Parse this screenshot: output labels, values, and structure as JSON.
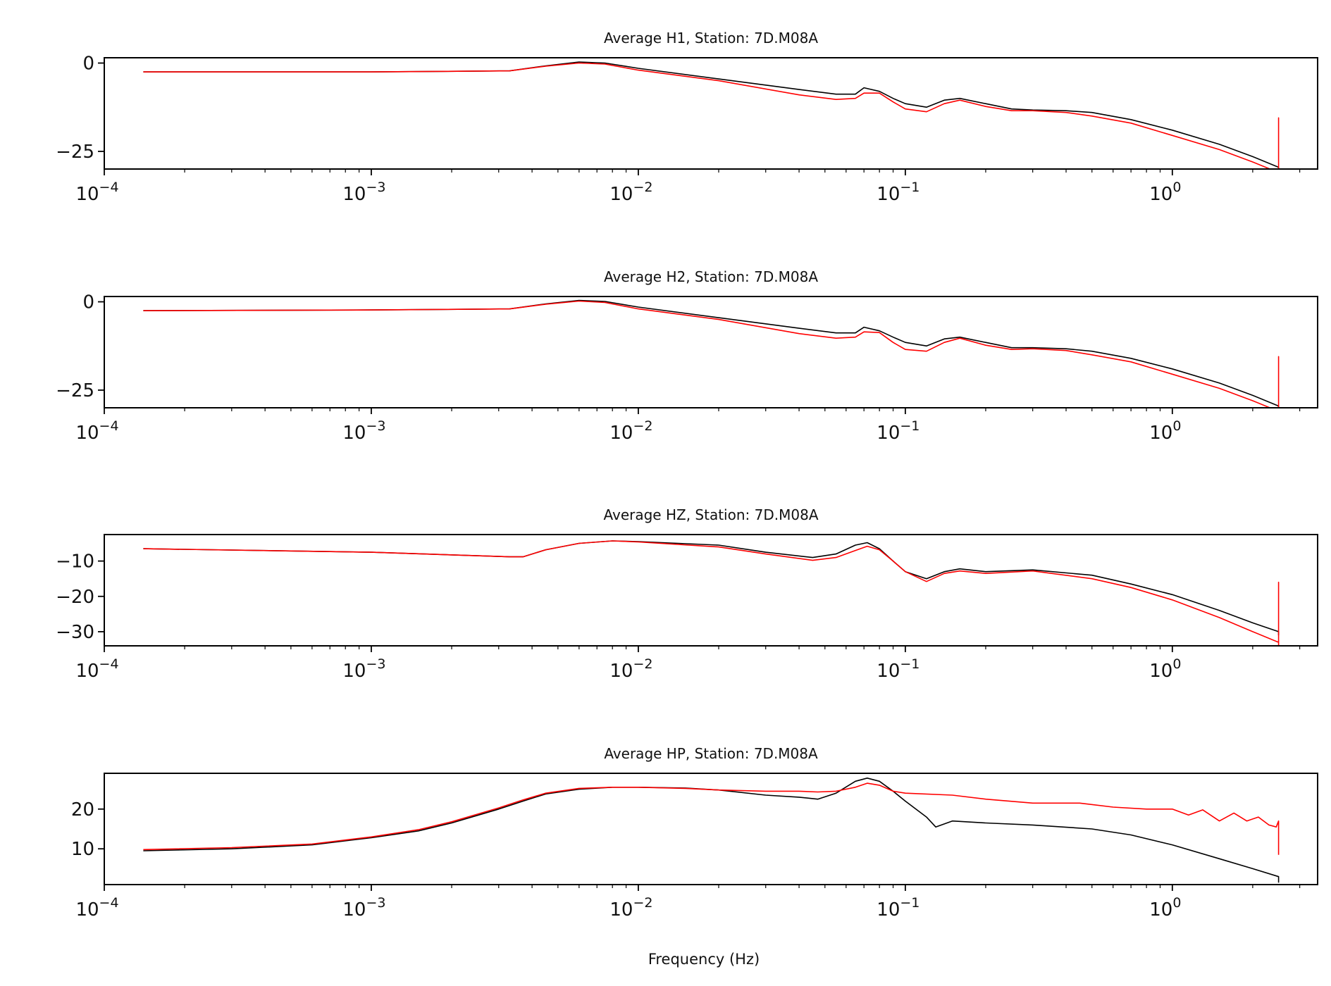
{
  "chart_data": [
    {
      "type": "line",
      "title": "Average H1, Station: 7D.M08A",
      "xscale": "log",
      "xlim": [
        0.0001,
        3.5
      ],
      "ylim": [
        -30,
        1.5
      ],
      "x_ticks": [
        0.0001,
        0.001,
        0.01,
        0.1,
        1
      ],
      "x_tick_labels": [
        [
          "10",
          "−4"
        ],
        [
          "10",
          "−3"
        ],
        [
          "10",
          "−2"
        ],
        [
          "10",
          "−1"
        ],
        [
          "10",
          "0"
        ]
      ],
      "y_ticks": [
        0,
        -25
      ],
      "y_tick_labels": [
        "0",
        "−25"
      ],
      "xlabel": "",
      "series": [
        {
          "color": "#000000",
          "x": [
            0.00014,
            0.001,
            0.0033,
            0.0045,
            0.006,
            0.0075,
            0.01,
            0.02,
            0.04,
            0.055,
            0.065,
            0.07,
            0.08,
            0.09,
            0.1,
            0.12,
            0.14,
            0.16,
            0.2,
            0.25,
            0.3,
            0.4,
            0.5,
            0.7,
            1.0,
            1.5,
            2.0,
            2.5,
            2.5
          ],
          "y": [
            -2.5,
            -2.5,
            -2.2,
            -0.8,
            0.3,
            0.0,
            -1.5,
            -4.5,
            -7.5,
            -8.8,
            -8.8,
            -7.0,
            -8.0,
            -10.0,
            -11.5,
            -12.5,
            -10.5,
            -10.0,
            -11.5,
            -13.0,
            -13.3,
            -13.5,
            -14.0,
            -16.0,
            -19.0,
            -23.0,
            -26.5,
            -29.5,
            -31.0
          ]
        },
        {
          "color": "#ff0000",
          "x": [
            0.00014,
            0.001,
            0.0033,
            0.0045,
            0.006,
            0.0075,
            0.01,
            0.02,
            0.04,
            0.055,
            0.065,
            0.07,
            0.08,
            0.09,
            0.1,
            0.12,
            0.14,
            0.16,
            0.2,
            0.25,
            0.3,
            0.4,
            0.5,
            0.7,
            1.0,
            1.5,
            2.0,
            2.5,
            2.5,
            2.5
          ],
          "y": [
            -2.5,
            -2.5,
            -2.2,
            -0.9,
            0.0,
            -0.3,
            -2.0,
            -5.0,
            -9.0,
            -10.3,
            -10.0,
            -8.5,
            -8.5,
            -11.0,
            -13.0,
            -13.8,
            -11.5,
            -10.5,
            -12.3,
            -13.5,
            -13.5,
            -14.0,
            -15.0,
            -17.0,
            -20.5,
            -24.5,
            -28.0,
            -31.0,
            -15.5,
            -32.0
          ]
        }
      ]
    },
    {
      "type": "line",
      "title": "Average H2, Station: 7D.M08A",
      "xscale": "log",
      "xlim": [
        0.0001,
        3.5
      ],
      "ylim": [
        -30,
        1.5
      ],
      "x_ticks": [
        0.0001,
        0.001,
        0.01,
        0.1,
        1
      ],
      "x_tick_labels": [
        [
          "10",
          "−4"
        ],
        [
          "10",
          "−3"
        ],
        [
          "10",
          "−2"
        ],
        [
          "10",
          "−1"
        ],
        [
          "10",
          "0"
        ]
      ],
      "y_ticks": [
        0,
        -25
      ],
      "y_tick_labels": [
        "0",
        "−25"
      ],
      "xlabel": "",
      "series": [
        {
          "color": "#000000",
          "x": [
            0.00014,
            0.001,
            0.0033,
            0.0045,
            0.006,
            0.0075,
            0.01,
            0.02,
            0.04,
            0.055,
            0.065,
            0.07,
            0.08,
            0.09,
            0.1,
            0.12,
            0.14,
            0.16,
            0.2,
            0.25,
            0.3,
            0.4,
            0.5,
            0.7,
            1.0,
            1.5,
            2.0,
            2.5,
            2.5
          ],
          "y": [
            -2.5,
            -2.3,
            -2.0,
            -0.6,
            0.4,
            0.1,
            -1.5,
            -4.5,
            -7.5,
            -8.8,
            -8.8,
            -7.2,
            -8.2,
            -10.0,
            -11.5,
            -12.5,
            -10.5,
            -10.0,
            -11.5,
            -13.0,
            -13.0,
            -13.3,
            -14.0,
            -16.0,
            -19.0,
            -23.0,
            -26.5,
            -29.5,
            -31.0
          ]
        },
        {
          "color": "#ff0000",
          "x": [
            0.00014,
            0.001,
            0.0033,
            0.0045,
            0.006,
            0.0075,
            0.01,
            0.02,
            0.04,
            0.055,
            0.065,
            0.07,
            0.08,
            0.09,
            0.1,
            0.12,
            0.14,
            0.16,
            0.2,
            0.25,
            0.3,
            0.4,
            0.5,
            0.7,
            1.0,
            1.5,
            2.0,
            2.5,
            2.5,
            2.5
          ],
          "y": [
            -2.5,
            -2.3,
            -2.0,
            -0.7,
            0.2,
            -0.2,
            -2.0,
            -5.0,
            -9.0,
            -10.3,
            -10.0,
            -8.5,
            -8.7,
            -11.5,
            -13.5,
            -14.0,
            -11.5,
            -10.3,
            -12.3,
            -13.5,
            -13.3,
            -13.8,
            -15.0,
            -17.0,
            -20.5,
            -24.5,
            -28.0,
            -31.0,
            -15.5,
            -32.0
          ]
        }
      ]
    },
    {
      "type": "line",
      "title": "Average HZ, Station: 7D.M08A",
      "xscale": "log",
      "xlim": [
        0.0001,
        3.5
      ],
      "ylim": [
        -34,
        -2.5
      ],
      "x_ticks": [
        0.0001,
        0.001,
        0.01,
        0.1,
        1
      ],
      "x_tick_labels": [
        [
          "10",
          "−4"
        ],
        [
          "10",
          "−3"
        ],
        [
          "10",
          "−2"
        ],
        [
          "10",
          "−1"
        ],
        [
          "10",
          "0"
        ]
      ],
      "y_ticks": [
        -10,
        -20,
        -30
      ],
      "y_tick_labels": [
        "−10",
        "−20",
        "−30"
      ],
      "xlabel": "",
      "series": [
        {
          "color": "#000000",
          "x": [
            0.00014,
            0.001,
            0.0033,
            0.0037,
            0.0045,
            0.006,
            0.008,
            0.01,
            0.02,
            0.03,
            0.045,
            0.055,
            0.065,
            0.072,
            0.08,
            0.09,
            0.1,
            0.12,
            0.14,
            0.16,
            0.2,
            0.3,
            0.5,
            0.7,
            1.0,
            1.5,
            2.0,
            2.5,
            2.5
          ],
          "y": [
            -6.5,
            -7.5,
            -8.8,
            -8.8,
            -6.8,
            -5.0,
            -4.3,
            -4.5,
            -5.5,
            -7.5,
            -9.0,
            -8.0,
            -5.5,
            -4.8,
            -6.5,
            -10.0,
            -13.0,
            -15.0,
            -13.0,
            -12.2,
            -13.0,
            -12.5,
            -14.0,
            -16.5,
            -19.5,
            -24.0,
            -27.5,
            -30.0,
            -31.0
          ]
        },
        {
          "color": "#ff0000",
          "x": [
            0.00014,
            0.001,
            0.0033,
            0.0037,
            0.0045,
            0.006,
            0.008,
            0.01,
            0.02,
            0.03,
            0.045,
            0.055,
            0.065,
            0.072,
            0.08,
            0.09,
            0.1,
            0.12,
            0.14,
            0.16,
            0.2,
            0.3,
            0.5,
            0.7,
            1.0,
            1.5,
            2.0,
            2.5,
            2.5,
            2.5
          ],
          "y": [
            -6.5,
            -7.5,
            -8.8,
            -8.8,
            -6.8,
            -5.0,
            -4.3,
            -4.6,
            -6.0,
            -8.0,
            -9.8,
            -9.0,
            -7.0,
            -5.8,
            -6.8,
            -10.0,
            -13.0,
            -15.8,
            -13.5,
            -12.8,
            -13.5,
            -12.8,
            -15.0,
            -17.5,
            -21.0,
            -26.0,
            -30.0,
            -33.0,
            -16.0,
            -34.0
          ]
        }
      ]
    },
    {
      "type": "line",
      "title": "Average HP, Station: 7D.M08A",
      "xscale": "log",
      "xlim": [
        0.0001,
        3.5
      ],
      "ylim": [
        1,
        29
      ],
      "x_ticks": [
        0.0001,
        0.001,
        0.01,
        0.1,
        1
      ],
      "x_tick_labels": [
        [
          "10",
          "−4"
        ],
        [
          "10",
          "−3"
        ],
        [
          "10",
          "−2"
        ],
        [
          "10",
          "−1"
        ],
        [
          "10",
          "0"
        ]
      ],
      "y_ticks": [
        20,
        10
      ],
      "y_tick_labels": [
        "20",
        "10"
      ],
      "xlabel": "Frequency (Hz)",
      "series": [
        {
          "color": "#000000",
          "x": [
            0.00014,
            0.0003,
            0.0006,
            0.001,
            0.0015,
            0.002,
            0.003,
            0.0037,
            0.0045,
            0.006,
            0.008,
            0.01,
            0.015,
            0.02,
            0.03,
            0.04,
            0.047,
            0.055,
            0.065,
            0.072,
            0.08,
            0.09,
            0.1,
            0.12,
            0.13,
            0.15,
            0.2,
            0.3,
            0.5,
            0.7,
            1.0,
            1.5,
            2.0,
            2.5,
            2.5
          ],
          "y": [
            9.5,
            10.0,
            11.0,
            12.8,
            14.5,
            16.5,
            20.0,
            22.0,
            23.8,
            25.0,
            25.5,
            25.5,
            25.3,
            24.8,
            23.5,
            23.0,
            22.5,
            24.0,
            27.0,
            27.8,
            27.0,
            24.5,
            22.0,
            18.0,
            15.5,
            17.0,
            16.5,
            16.0,
            15.0,
            13.5,
            11.0,
            7.5,
            5.0,
            3.0,
            1.5
          ]
        },
        {
          "color": "#ff0000",
          "x": [
            0.00014,
            0.0003,
            0.0006,
            0.001,
            0.0015,
            0.002,
            0.003,
            0.0037,
            0.0045,
            0.006,
            0.008,
            0.01,
            0.015,
            0.02,
            0.03,
            0.04,
            0.047,
            0.055,
            0.065,
            0.072,
            0.08,
            0.09,
            0.1,
            0.15,
            0.2,
            0.3,
            0.45,
            0.6,
            0.8,
            1.0,
            1.15,
            1.3,
            1.5,
            1.7,
            1.9,
            2.1,
            2.3,
            2.45,
            2.5,
            2.5
          ],
          "y": [
            9.8,
            10.3,
            11.2,
            13.0,
            14.8,
            16.8,
            20.3,
            22.3,
            24.0,
            25.2,
            25.5,
            25.5,
            25.2,
            24.8,
            24.5,
            24.5,
            24.3,
            24.5,
            25.5,
            26.5,
            26.0,
            24.5,
            24.0,
            23.5,
            22.5,
            21.5,
            21.5,
            20.5,
            20.0,
            20.0,
            18.5,
            19.8,
            17.0,
            19.0,
            17.0,
            18.0,
            16.0,
            15.5,
            17.0,
            8.5
          ]
        }
      ]
    }
  ]
}
